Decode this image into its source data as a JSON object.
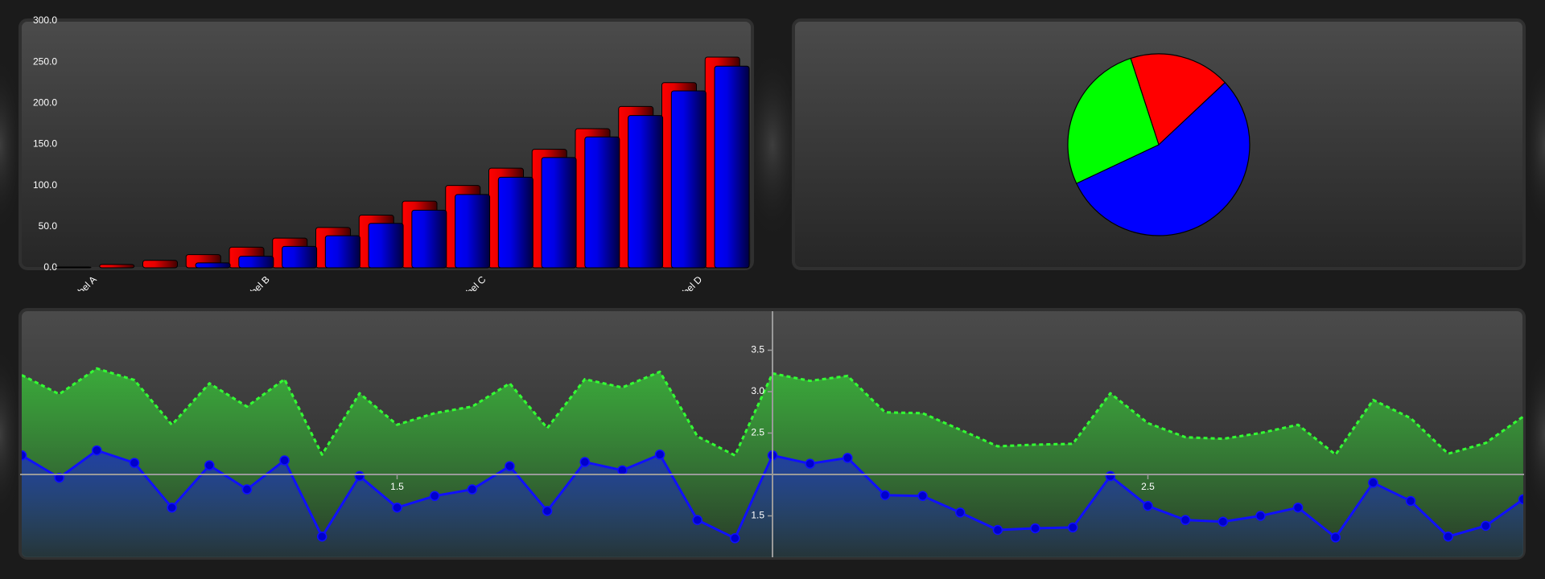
{
  "chart_data": [
    {
      "type": "bar",
      "categories": [
        "Label A",
        null,
        null,
        null,
        "Label B",
        null,
        null,
        null,
        null,
        "Label C",
        null,
        null,
        null,
        null,
        "Label D",
        null
      ],
      "series": [
        {
          "color": "#ff0000",
          "values": [
            1,
            4,
            9,
            16,
            25,
            36,
            49,
            64,
            81,
            100,
            121,
            144,
            169,
            196,
            225,
            256
          ]
        },
        {
          "color": "#0000ff",
          "values": [
            0,
            0,
            0,
            6,
            14,
            26,
            39,
            54,
            70,
            89,
            110,
            134,
            159,
            185,
            215,
            245
          ]
        }
      ],
      "ylim": [
        0,
        300
      ],
      "yticks": [
        {
          "value": 0,
          "label": "0.0"
        },
        {
          "value": 50,
          "label": "50.0"
        },
        {
          "value": 100,
          "label": "100.0"
        },
        {
          "value": 150,
          "label": "150.0"
        },
        {
          "value": 200,
          "label": "200.0"
        },
        {
          "value": 250,
          "label": "250.0"
        },
        {
          "value": 300,
          "label": "300.0"
        }
      ]
    },
    {
      "type": "pie",
      "values": [
        18,
        55,
        27
      ],
      "colors": [
        "#ff0000",
        "#0000ff",
        "#00ff00"
      ]
    },
    {
      "type": "line",
      "x": [
        1.0,
        1.05,
        1.1,
        1.15,
        1.2,
        1.25,
        1.3,
        1.35,
        1.4,
        1.45,
        1.5,
        1.55,
        1.6,
        1.65,
        1.7,
        1.75,
        1.8,
        1.85,
        1.9,
        1.95,
        2.0,
        2.05,
        2.1,
        2.15,
        2.2,
        2.25,
        2.3,
        2.35,
        2.4,
        2.45,
        2.5,
        2.55,
        2.6,
        2.65,
        2.7,
        2.75,
        2.8,
        2.85,
        2.9,
        2.95,
        3.0
      ],
      "series": [
        {
          "color": "#33ff33",
          "line_style": "dashed",
          "markers": false,
          "values": [
            3.2,
            2.97,
            3.28,
            3.14,
            2.6,
            3.1,
            2.82,
            3.15,
            2.24,
            2.98,
            2.6,
            2.74,
            2.82,
            3.1,
            2.56,
            3.15,
            3.05,
            3.24,
            2.46,
            2.23,
            3.22,
            3.13,
            3.19,
            2.75,
            2.74,
            2.54,
            2.34,
            2.36,
            2.37,
            2.98,
            2.62,
            2.45,
            2.43,
            2.5,
            2.6,
            2.24,
            2.9,
            2.68,
            2.25,
            2.38,
            2.7
          ]
        },
        {
          "color": "#1010ff",
          "line_style": "solid",
          "markers": true,
          "values": [
            2.23,
            1.96,
            2.29,
            2.14,
            1.6,
            2.11,
            1.82,
            2.17,
            1.25,
            1.98,
            1.6,
            1.74,
            1.82,
            2.1,
            1.56,
            2.15,
            2.05,
            2.24,
            1.45,
            1.23,
            2.23,
            2.13,
            2.2,
            1.75,
            1.74,
            1.54,
            1.33,
            1.35,
            1.36,
            1.98,
            1.62,
            1.45,
            1.43,
            1.5,
            1.6,
            1.24,
            1.9,
            1.68,
            1.25,
            1.38,
            1.7
          ]
        }
      ],
      "xlim": [
        1,
        3
      ],
      "ylim": [
        1,
        4
      ],
      "xticks": [
        1.5,
        2.5
      ],
      "yticks": [
        1.5,
        2.5,
        {
          "value": 3,
          "label": "3.0"
        },
        3.5
      ],
      "axes_cross": [
        2,
        2
      ]
    }
  ]
}
